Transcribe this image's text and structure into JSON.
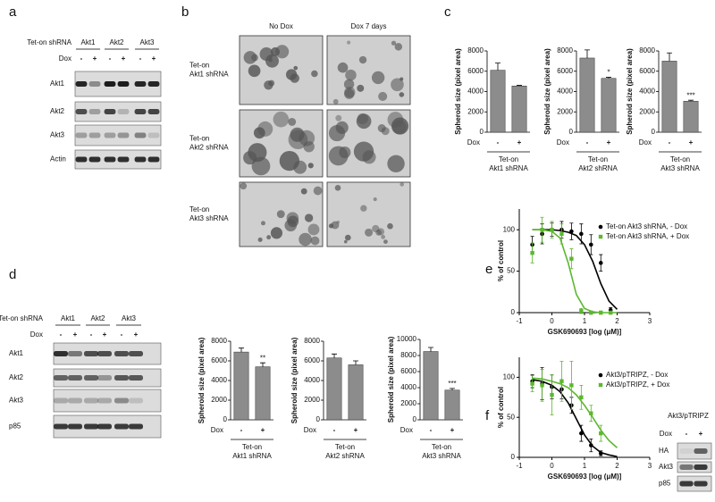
{
  "panel_labels": [
    "a",
    "b",
    "c",
    "d",
    "e",
    "f"
  ],
  "blot_a": {
    "header": "Tet-on shRNA",
    "groups": [
      "Akt1",
      "Akt2",
      "Akt3"
    ],
    "dox_label": "Dox",
    "dox": [
      "-",
      "+",
      "-",
      "+",
      "-",
      "+"
    ],
    "rows": [
      "Akt1",
      "Akt2",
      "Akt3",
      "Actin"
    ]
  },
  "blot_d": {
    "header": "Tet-on shRNA",
    "groups": [
      "Akt1",
      "Akt2",
      "Akt3"
    ],
    "dox_label": "Dox",
    "dox": [
      "-",
      "+",
      "-",
      "+",
      "-",
      "+"
    ],
    "rows": [
      "Akt1",
      "Akt2",
      "Akt3",
      "p85"
    ]
  },
  "blot_f": {
    "header": "Akt3/pTRIPZ",
    "dox_label": "Dox",
    "dox": [
      "-",
      "+"
    ],
    "rows": [
      "HA",
      "Akt3",
      "p85"
    ]
  },
  "images_b": {
    "columns": [
      "No Dox",
      "Dox 7 days"
    ],
    "rows": [
      [
        "Tet-on",
        "Akt1 shRNA"
      ],
      [
        "Tet-on",
        "Akt2 shRNA"
      ],
      [
        "Tet-on",
        "Akt3 shRNA"
      ]
    ]
  },
  "chart_data": [
    {
      "type": "bar",
      "ylabel": "Spheroid size (pixel area)",
      "xlabel": "Dox",
      "categories": [
        "-",
        "+"
      ],
      "group_label": [
        "Tet-on",
        "Akt1 shRNA"
      ],
      "values": [
        6100,
        4550
      ],
      "errors": [
        700,
        60
      ],
      "ylim": [
        0,
        8000
      ],
      "yticks": [
        0,
        2000,
        4000,
        6000,
        8000
      ],
      "color": "#8c8c8c"
    },
    {
      "type": "bar",
      "ylabel": "Spheroid size (pixel area)",
      "xlabel": "Dox",
      "categories": [
        "-",
        "+"
      ],
      "group_label": [
        "Tet-on",
        "Akt2 shRNA"
      ],
      "values": [
        7300,
        5300
      ],
      "errors": [
        800,
        100
      ],
      "ylim": [
        0,
        8000
      ],
      "yticks": [
        0,
        2000,
        4000,
        6000,
        8000
      ],
      "color": "#8c8c8c",
      "annotation": "*"
    },
    {
      "type": "bar",
      "ylabel": "Spheroid size (pixel area)",
      "xlabel": "Dox",
      "categories": [
        "-",
        "+"
      ],
      "group_label": [
        "Tet-on",
        "Akt3 shRNA"
      ],
      "values": [
        7000,
        3050
      ],
      "errors": [
        800,
        100
      ],
      "ylim": [
        0,
        8000
      ],
      "yticks": [
        0,
        2000,
        4000,
        6000,
        8000
      ],
      "color": "#8c8c8c",
      "annotation": "***"
    },
    {
      "type": "bar",
      "ylabel": "Spheroid size (pixel area)",
      "xlabel": "Dox",
      "categories": [
        "-",
        "+"
      ],
      "group_label": [
        "Tet-on",
        "Akt1 shRNA"
      ],
      "values": [
        6900,
        5400
      ],
      "errors": [
        400,
        400
      ],
      "ylim": [
        0,
        8000
      ],
      "yticks": [
        0,
        2000,
        4000,
        6000,
        8000
      ],
      "color": "#8c8c8c",
      "annotation": "**"
    },
    {
      "type": "bar",
      "ylabel": "Spheroid size (pixel area)",
      "xlabel": "Dox",
      "categories": [
        "-",
        "+"
      ],
      "group_label": [
        "Tet-on",
        "Akt2 shRNA"
      ],
      "values": [
        6300,
        5600
      ],
      "errors": [
        400,
        400
      ],
      "ylim": [
        0,
        8000
      ],
      "yticks": [
        0,
        2000,
        4000,
        6000,
        8000
      ],
      "color": "#8c8c8c"
    },
    {
      "type": "bar",
      "ylabel": "Spheroid size (pixel area)",
      "xlabel": "Dox",
      "categories": [
        "-",
        "+"
      ],
      "group_label": [
        "Tet-on",
        "Akt3 shRNA"
      ],
      "values": [
        8500,
        3700
      ],
      "errors": [
        500,
        200
      ],
      "ylim": [
        0,
        10000
      ],
      "yticks": [
        0,
        2000,
        4000,
        6000,
        8000,
        10000
      ],
      "color": "#8c8c8c",
      "annotation": "***"
    },
    {
      "type": "line",
      "ylabel": "% of control",
      "xlabel": "GSK690693 [log (μM)]",
      "xlim": [
        -1,
        3
      ],
      "xticks": [
        -1,
        0,
        1,
        2,
        3
      ],
      "ylim": [
        0,
        125
      ],
      "yticks": [
        0,
        50,
        100
      ],
      "legend": "upper right",
      "series": [
        {
          "name": "Tet-on Akt3 shRNA, - Dox",
          "color": "#000000",
          "x": [
            -0.6,
            -0.3,
            0,
            0.3,
            0.6,
            0.9,
            1.2,
            1.5,
            1.8
          ],
          "values": [
            82,
            95,
            100,
            100,
            98,
            95,
            82,
            60,
            3
          ],
          "errors": [
            10,
            12,
            8,
            10,
            10,
            12,
            12,
            10,
            3
          ],
          "fit_x": [
            -0.6,
            -0.3,
            0,
            0.25,
            0.5,
            0.75,
            1,
            1.25,
            1.5,
            1.75,
            2
          ],
          "fit_values": [
            100,
            100,
            100,
            99,
            97,
            93,
            82,
            62,
            35,
            14,
            4
          ]
        },
        {
          "name": "Tet-on Akt3 shRNA, + Dox",
          "color": "#5cb82e",
          "x": [
            -0.6,
            -0.3,
            0,
            0.3,
            0.6,
            0.9,
            1.2,
            1.5,
            1.8
          ],
          "values": [
            72,
            100,
            100,
            95,
            65,
            2,
            0,
            0,
            0
          ],
          "errors": [
            12,
            15,
            10,
            12,
            12,
            3,
            2,
            2,
            2
          ],
          "fit_x": [
            -0.6,
            -0.3,
            0,
            0.25,
            0.5,
            0.75,
            1,
            1.25,
            1.5,
            1.75,
            2
          ],
          "fit_values": [
            100,
            100,
            98,
            90,
            60,
            22,
            5,
            1,
            0,
            0,
            0
          ]
        }
      ]
    },
    {
      "type": "line",
      "ylabel": "% of control",
      "xlabel": "GSK690693 [log (μM)]",
      "xlim": [
        -1,
        3
      ],
      "xticks": [
        -1,
        0,
        1,
        2,
        3
      ],
      "ylim": [
        0,
        125
      ],
      "yticks": [
        0,
        50,
        100
      ],
      "legend": "upper right",
      "series": [
        {
          "name": "Akt3/pTRIPZ, - Dox",
          "color": "#000000",
          "x": [
            -0.6,
            -0.3,
            0,
            0.3,
            0.6,
            0.9,
            1.2,
            1.5
          ],
          "values": [
            95,
            92,
            88,
            85,
            65,
            30,
            15,
            5
          ],
          "errors": [
            8,
            20,
            15,
            12,
            10,
            10,
            8,
            3
          ],
          "fit_x": [
            -0.6,
            -0.3,
            0,
            0.25,
            0.5,
            0.75,
            1,
            1.25,
            1.5,
            1.75,
            2
          ],
          "fit_values": [
            97,
            95,
            90,
            82,
            68,
            48,
            28,
            14,
            6,
            3,
            1
          ]
        },
        {
          "name": "Akt3/pTRIPZ, + Dox",
          "color": "#5cb82e",
          "x": [
            -0.6,
            -0.3,
            0,
            0.3,
            0.6,
            0.9,
            1.2,
            1.5
          ],
          "values": [
            92,
            90,
            78,
            95,
            90,
            75,
            55,
            30
          ],
          "errors": [
            10,
            20,
            25,
            25,
            30,
            15,
            10,
            10
          ],
          "fit_x": [
            -0.6,
            -0.3,
            0,
            0.25,
            0.5,
            0.75,
            1,
            1.25,
            1.5,
            1.75,
            2
          ],
          "fit_values": [
            99,
            98,
            95,
            92,
            87,
            78,
            65,
            50,
            34,
            21,
            12
          ]
        }
      ]
    }
  ]
}
